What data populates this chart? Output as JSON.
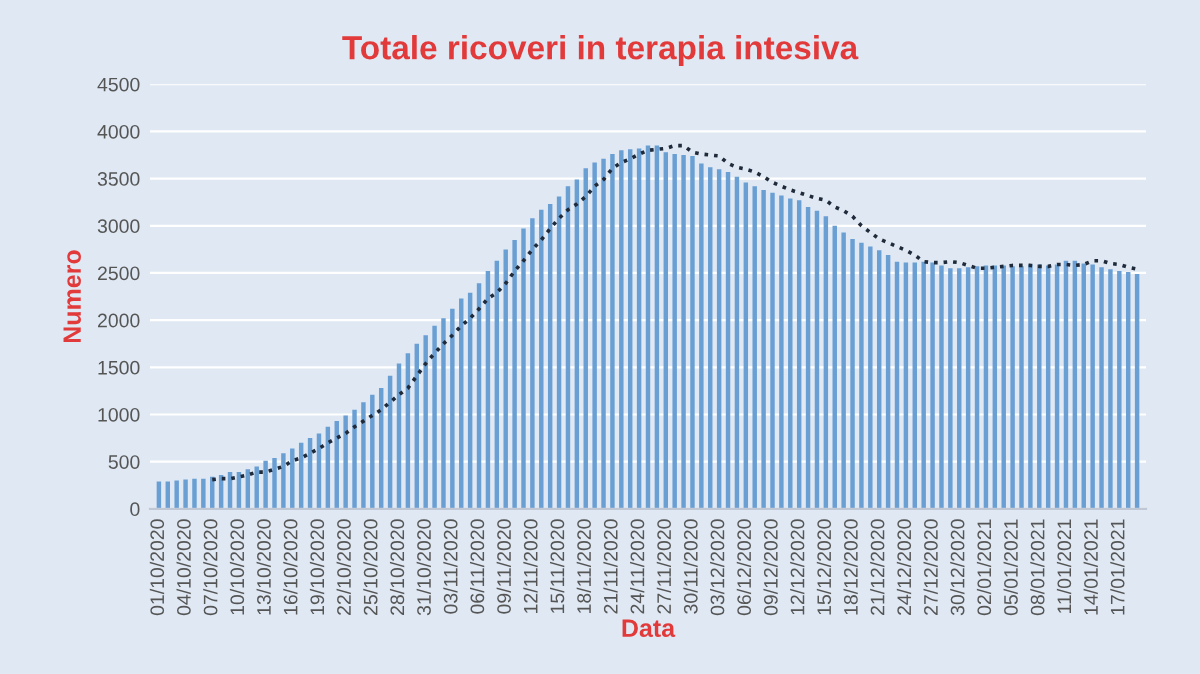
{
  "chart_data": {
    "type": "bar",
    "title": "Totale ricoveri in terapia intesiva",
    "xlabel": "Data",
    "ylabel": "Numero",
    "categories": [
      "01/10/2020",
      null,
      null,
      "04/10/2020",
      null,
      null,
      "07/10/2020",
      null,
      null,
      "10/10/2020",
      null,
      null,
      "13/10/2020",
      null,
      null,
      "16/10/2020",
      null,
      null,
      "19/10/2020",
      null,
      null,
      "22/10/2020",
      null,
      null,
      "25/10/2020",
      null,
      null,
      "28/10/2020",
      null,
      null,
      "31/10/2020",
      null,
      null,
      "03/11/2020",
      null,
      null,
      "06/11/2020",
      null,
      null,
      "09/11/2020",
      null,
      null,
      "12/11/2020",
      null,
      null,
      "15/11/2020",
      null,
      null,
      "18/11/2020",
      null,
      null,
      "21/11/2020",
      null,
      null,
      "24/11/2020",
      null,
      null,
      "27/11/2020",
      null,
      null,
      "30/11/2020",
      null,
      null,
      "03/12/2020",
      null,
      null,
      "06/12/2020",
      null,
      null,
      "09/12/2020",
      null,
      null,
      "12/12/2020",
      null,
      null,
      "15/12/2020",
      null,
      null,
      "18/12/2020",
      null,
      null,
      "21/12/2020",
      null,
      null,
      "24/12/2020",
      null,
      null,
      "27/12/2020",
      null,
      null,
      "30/12/2020",
      null,
      null,
      "02/01/2021",
      null,
      null,
      "05/01/2021",
      null,
      null,
      "08/01/2021",
      null,
      null,
      "11/01/2021",
      null,
      null,
      "14/01/2021",
      null,
      null,
      "17/01/2021",
      null,
      null
    ],
    "series": [
      {
        "color": "#6a9fd4",
        "values": [
          290,
          290,
          300,
          310,
          320,
          320,
          340,
          360,
          390,
          390,
          420,
          450,
          510,
          540,
          590,
          640,
          700,
          750,
          800,
          870,
          930,
          990,
          1050,
          1130,
          1210,
          1280,
          1410,
          1540,
          1650,
          1750,
          1840,
          1940,
          2020,
          2120,
          2230,
          2290,
          2390,
          2520,
          2630,
          2750,
          2850,
          2970,
          3080,
          3170,
          3230,
          3310,
          3420,
          3490,
          3610,
          3670,
          3710,
          3760,
          3800,
          3810,
          3820,
          3850,
          3850,
          3780,
          3760,
          3750,
          3740,
          3660,
          3620,
          3600,
          3570,
          3520,
          3460,
          3420,
          3380,
          3350,
          3320,
          3290,
          3270,
          3200,
          3160,
          3100,
          3000,
          2930,
          2860,
          2820,
          2780,
          2740,
          2690,
          2620,
          2610,
          2610,
          2620,
          2610,
          2580,
          2550,
          2550,
          2560,
          2570,
          2580,
          2580,
          2580,
          2570,
          2570,
          2590,
          2590,
          2580,
          2590,
          2630,
          2630,
          2600,
          2590,
          2560,
          2540,
          2520,
          2510,
          2490
        ]
      },
      {
        "type": "line",
        "color": "#1f2a3a",
        "line_style": "dotted",
        "values": [
          null,
          null,
          null,
          null,
          null,
          null,
          310,
          320,
          320,
          340,
          360,
          390,
          390,
          420,
          450,
          510,
          540,
          590,
          640,
          700,
          750,
          800,
          870,
          930,
          990,
          1050,
          1130,
          1210,
          1280,
          1410,
          1540,
          1650,
          1750,
          1840,
          1940,
          2020,
          2120,
          2230,
          2290,
          2390,
          2520,
          2630,
          2750,
          2850,
          2970,
          3080,
          3170,
          3230,
          3310,
          3420,
          3490,
          3610,
          3670,
          3710,
          3760,
          3800,
          3810,
          3820,
          3850,
          3850,
          3780,
          3760,
          3750,
          3740,
          3660,
          3620,
          3600,
          3570,
          3520,
          3460,
          3420,
          3380,
          3350,
          3320,
          3290,
          3270,
          3200,
          3160,
          3100,
          3000,
          2930,
          2860,
          2820,
          2780,
          2740,
          2690,
          2620,
          2610,
          2610,
          2620,
          2610,
          2580,
          2550,
          2550,
          2560,
          2570,
          2580,
          2580,
          2580,
          2570,
          2570,
          2590,
          2590,
          2580,
          2590,
          2630,
          2630,
          2600,
          2590,
          2560,
          2540
        ]
      }
    ],
    "ylim": [
      0,
      4500
    ],
    "yticks": [
      0,
      500,
      1000,
      1500,
      2000,
      2500,
      3000,
      3500,
      4000,
      4500
    ],
    "grid": "y",
    "legend": false
  }
}
